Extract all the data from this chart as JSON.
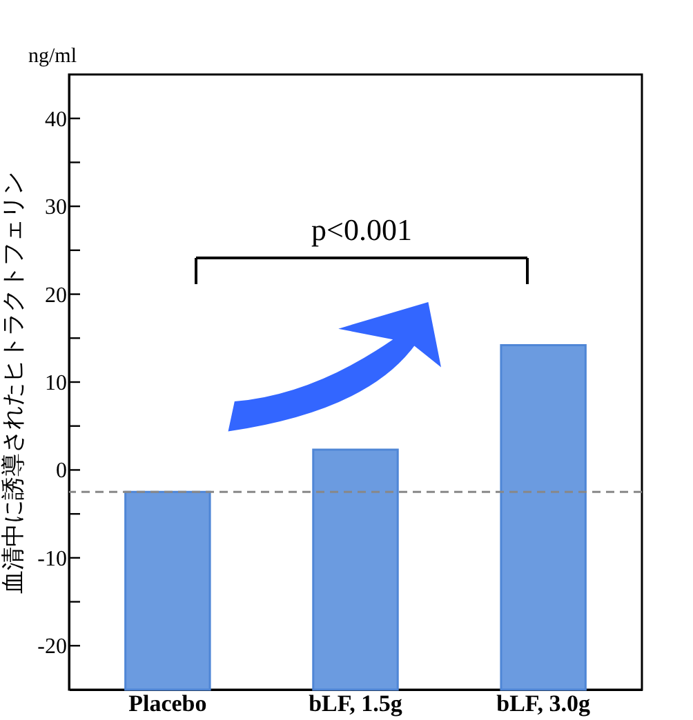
{
  "chart_data": {
    "type": "bar",
    "ylabel": "血清中に誘導されたヒトラクトフェリン",
    "categories": [
      "Placebo",
      "bLF, 1.5g",
      "bLF, 3.0g"
    ],
    "base": [
      -25,
      -25,
      -25
    ],
    "values": [
      22.5,
      27.3,
      39.2
    ],
    "color": "#6b9be0",
    "ylim": [
      -25,
      45
    ],
    "yticks": [
      -20,
      {
        "value": -15,
        "label": null
      },
      -10,
      {
        "value": -5,
        "label": null
      },
      0,
      {
        "value": 5,
        "label": null
      },
      10,
      {
        "value": 15,
        "label": null
      },
      20,
      {
        "value": 25,
        "label": null
      },
      30,
      {
        "value": 35,
        "label": null
      },
      40
    ],
    "ref_lines": [
      {
        "axis": "y",
        "value": -2.5,
        "color": "#888888",
        "line_style": "dashed"
      }
    ],
    "annotations": [
      "ng/ml",
      "p<0.001"
    ],
    "grid": false
  }
}
